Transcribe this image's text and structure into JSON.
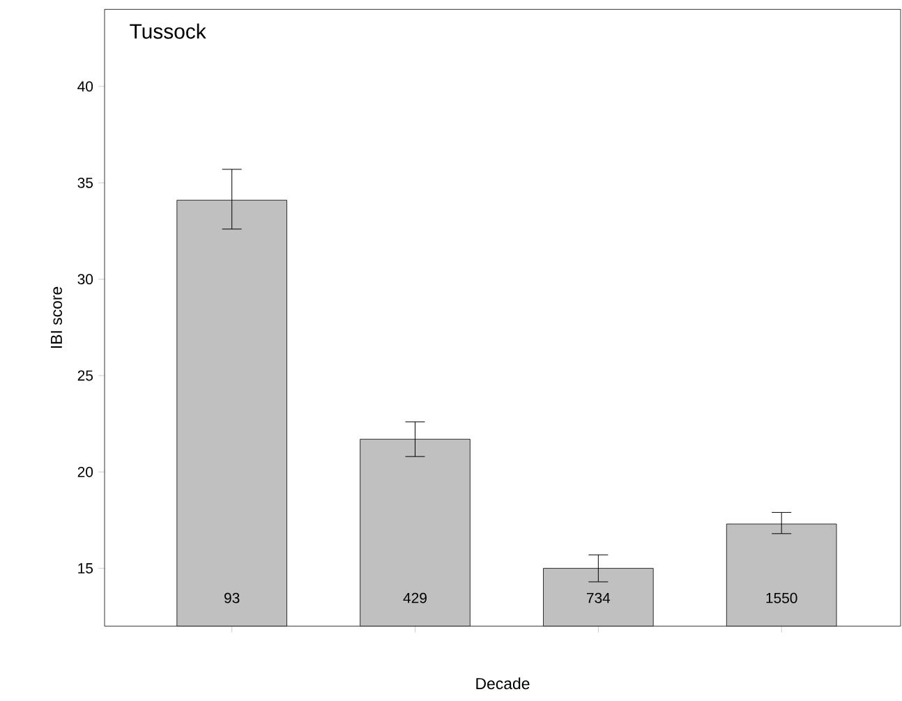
{
  "chart_data": {
    "type": "bar",
    "title": "Tussock",
    "xlabel": "Decade",
    "ylabel": "IBI score",
    "categories": [
      null,
      null,
      null,
      null
    ],
    "series": [
      {
        "color": "#c0c0c0",
        "values": [
          34.1,
          21.7,
          15.0,
          17.3
        ],
        "errors": [
          [
            32.6,
            35.7
          ],
          [
            20.8,
            22.6
          ],
          [
            14.3,
            15.7
          ],
          [
            16.8,
            17.9
          ]
        ]
      }
    ],
    "annotations": [
      "93",
      "429",
      "734",
      "1550"
    ],
    "ylim": [
      12,
      44
    ],
    "yticks": [
      15,
      20,
      25,
      30,
      35,
      40
    ],
    "tick_labels": "y"
  }
}
